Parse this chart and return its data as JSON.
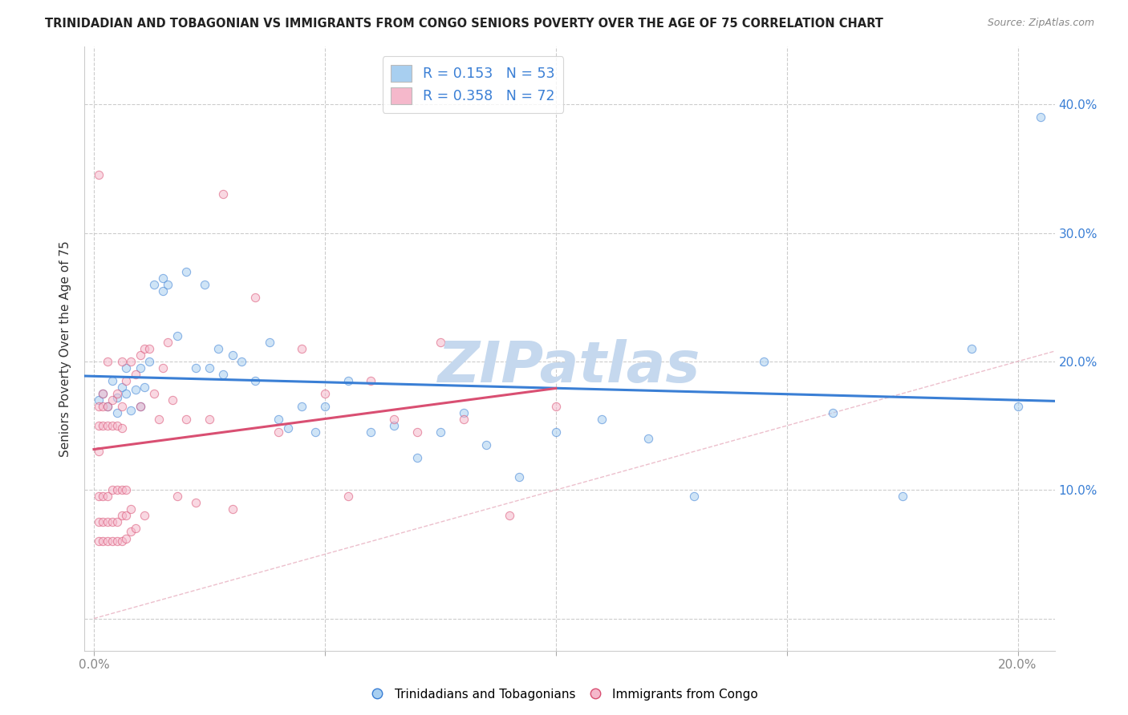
{
  "title": "TRINIDADIAN AND TOBAGONIAN VS IMMIGRANTS FROM CONGO SENIORS POVERTY OVER THE AGE OF 75 CORRELATION CHART",
  "source": "Source: ZipAtlas.com",
  "ylabel": "Seniors Poverty Over the Age of 75",
  "background_color": "#ffffff",
  "grid_color": "#cccccc",
  "blue_color": "#a8cff0",
  "pink_color": "#f5b8cb",
  "blue_line_color": "#3a7fd5",
  "pink_line_color": "#d94f72",
  "diagonal_color": "#e8b4c0",
  "R_blue": 0.153,
  "N_blue": 53,
  "R_pink": 0.358,
  "N_pink": 72,
  "xlim": [
    -0.002,
    0.208
  ],
  "ylim": [
    -0.025,
    0.445
  ],
  "blue_x": [
    0.001,
    0.002,
    0.003,
    0.004,
    0.005,
    0.005,
    0.006,
    0.007,
    0.007,
    0.008,
    0.009,
    0.01,
    0.01,
    0.011,
    0.012,
    0.013,
    0.015,
    0.015,
    0.016,
    0.018,
    0.02,
    0.022,
    0.024,
    0.025,
    0.027,
    0.028,
    0.03,
    0.032,
    0.035,
    0.038,
    0.04,
    0.042,
    0.045,
    0.048,
    0.05,
    0.055,
    0.06,
    0.065,
    0.07,
    0.075,
    0.08,
    0.085,
    0.092,
    0.1,
    0.11,
    0.12,
    0.13,
    0.145,
    0.16,
    0.175,
    0.19,
    0.2,
    0.205
  ],
  "blue_y": [
    0.17,
    0.175,
    0.165,
    0.185,
    0.172,
    0.16,
    0.18,
    0.195,
    0.175,
    0.162,
    0.178,
    0.165,
    0.195,
    0.18,
    0.2,
    0.26,
    0.265,
    0.255,
    0.26,
    0.22,
    0.27,
    0.195,
    0.26,
    0.195,
    0.21,
    0.19,
    0.205,
    0.2,
    0.185,
    0.215,
    0.155,
    0.148,
    0.165,
    0.145,
    0.165,
    0.185,
    0.145,
    0.15,
    0.125,
    0.145,
    0.16,
    0.135,
    0.11,
    0.145,
    0.155,
    0.14,
    0.095,
    0.2,
    0.16,
    0.095,
    0.21,
    0.165,
    0.39
  ],
  "pink_x": [
    0.001,
    0.001,
    0.001,
    0.001,
    0.001,
    0.001,
    0.001,
    0.002,
    0.002,
    0.002,
    0.002,
    0.002,
    0.002,
    0.003,
    0.003,
    0.003,
    0.003,
    0.003,
    0.003,
    0.004,
    0.004,
    0.004,
    0.004,
    0.004,
    0.005,
    0.005,
    0.005,
    0.005,
    0.005,
    0.006,
    0.006,
    0.006,
    0.006,
    0.006,
    0.006,
    0.007,
    0.007,
    0.007,
    0.007,
    0.008,
    0.008,
    0.008,
    0.009,
    0.009,
    0.01,
    0.01,
    0.011,
    0.011,
    0.012,
    0.013,
    0.014,
    0.015,
    0.016,
    0.017,
    0.018,
    0.02,
    0.022,
    0.025,
    0.028,
    0.03,
    0.035,
    0.04,
    0.045,
    0.05,
    0.055,
    0.06,
    0.065,
    0.07,
    0.075,
    0.08,
    0.09,
    0.1
  ],
  "pink_y": [
    0.06,
    0.075,
    0.095,
    0.13,
    0.15,
    0.165,
    0.345,
    0.06,
    0.075,
    0.095,
    0.15,
    0.165,
    0.175,
    0.06,
    0.075,
    0.095,
    0.15,
    0.165,
    0.2,
    0.06,
    0.075,
    0.1,
    0.15,
    0.17,
    0.06,
    0.075,
    0.1,
    0.15,
    0.175,
    0.06,
    0.08,
    0.1,
    0.148,
    0.165,
    0.2,
    0.062,
    0.08,
    0.1,
    0.185,
    0.068,
    0.085,
    0.2,
    0.07,
    0.19,
    0.165,
    0.205,
    0.08,
    0.21,
    0.21,
    0.175,
    0.155,
    0.195,
    0.215,
    0.17,
    0.095,
    0.155,
    0.09,
    0.155,
    0.33,
    0.085,
    0.25,
    0.145,
    0.21,
    0.175,
    0.095,
    0.185,
    0.155,
    0.145,
    0.215,
    0.155,
    0.08,
    0.165
  ],
  "marker_size": 55,
  "marker_alpha": 0.55,
  "watermark": "ZIPatlas",
  "watermark_color": "#c5d8ee",
  "watermark_fontsize": 52
}
